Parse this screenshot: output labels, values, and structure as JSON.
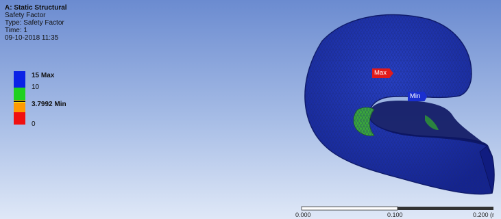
{
  "info": {
    "title": "A: Static Structural",
    "result": "Safety Factor",
    "type": "Type: Safety Factor",
    "time": "Time: 1",
    "date": "09-10-2018 11:35"
  },
  "legend": {
    "max_label": "15 Max",
    "upper_label": "10",
    "min_label": "3.7992 Min",
    "zero_label": "0",
    "colors": {
      "blue": "#0b22e6",
      "green": "#1fd11f",
      "yellow": "#f5e50f",
      "orange": "#ff9a00",
      "red": "#f01010"
    }
  },
  "probes": {
    "max": "Max",
    "min": "Min"
  },
  "scale": {
    "ticks": [
      "0.000",
      "0.100",
      "0.200 (r"
    ]
  },
  "colors": {
    "mesh": "#1b2a78",
    "shell": "#1d2fae",
    "interior": "#3aa83a"
  }
}
